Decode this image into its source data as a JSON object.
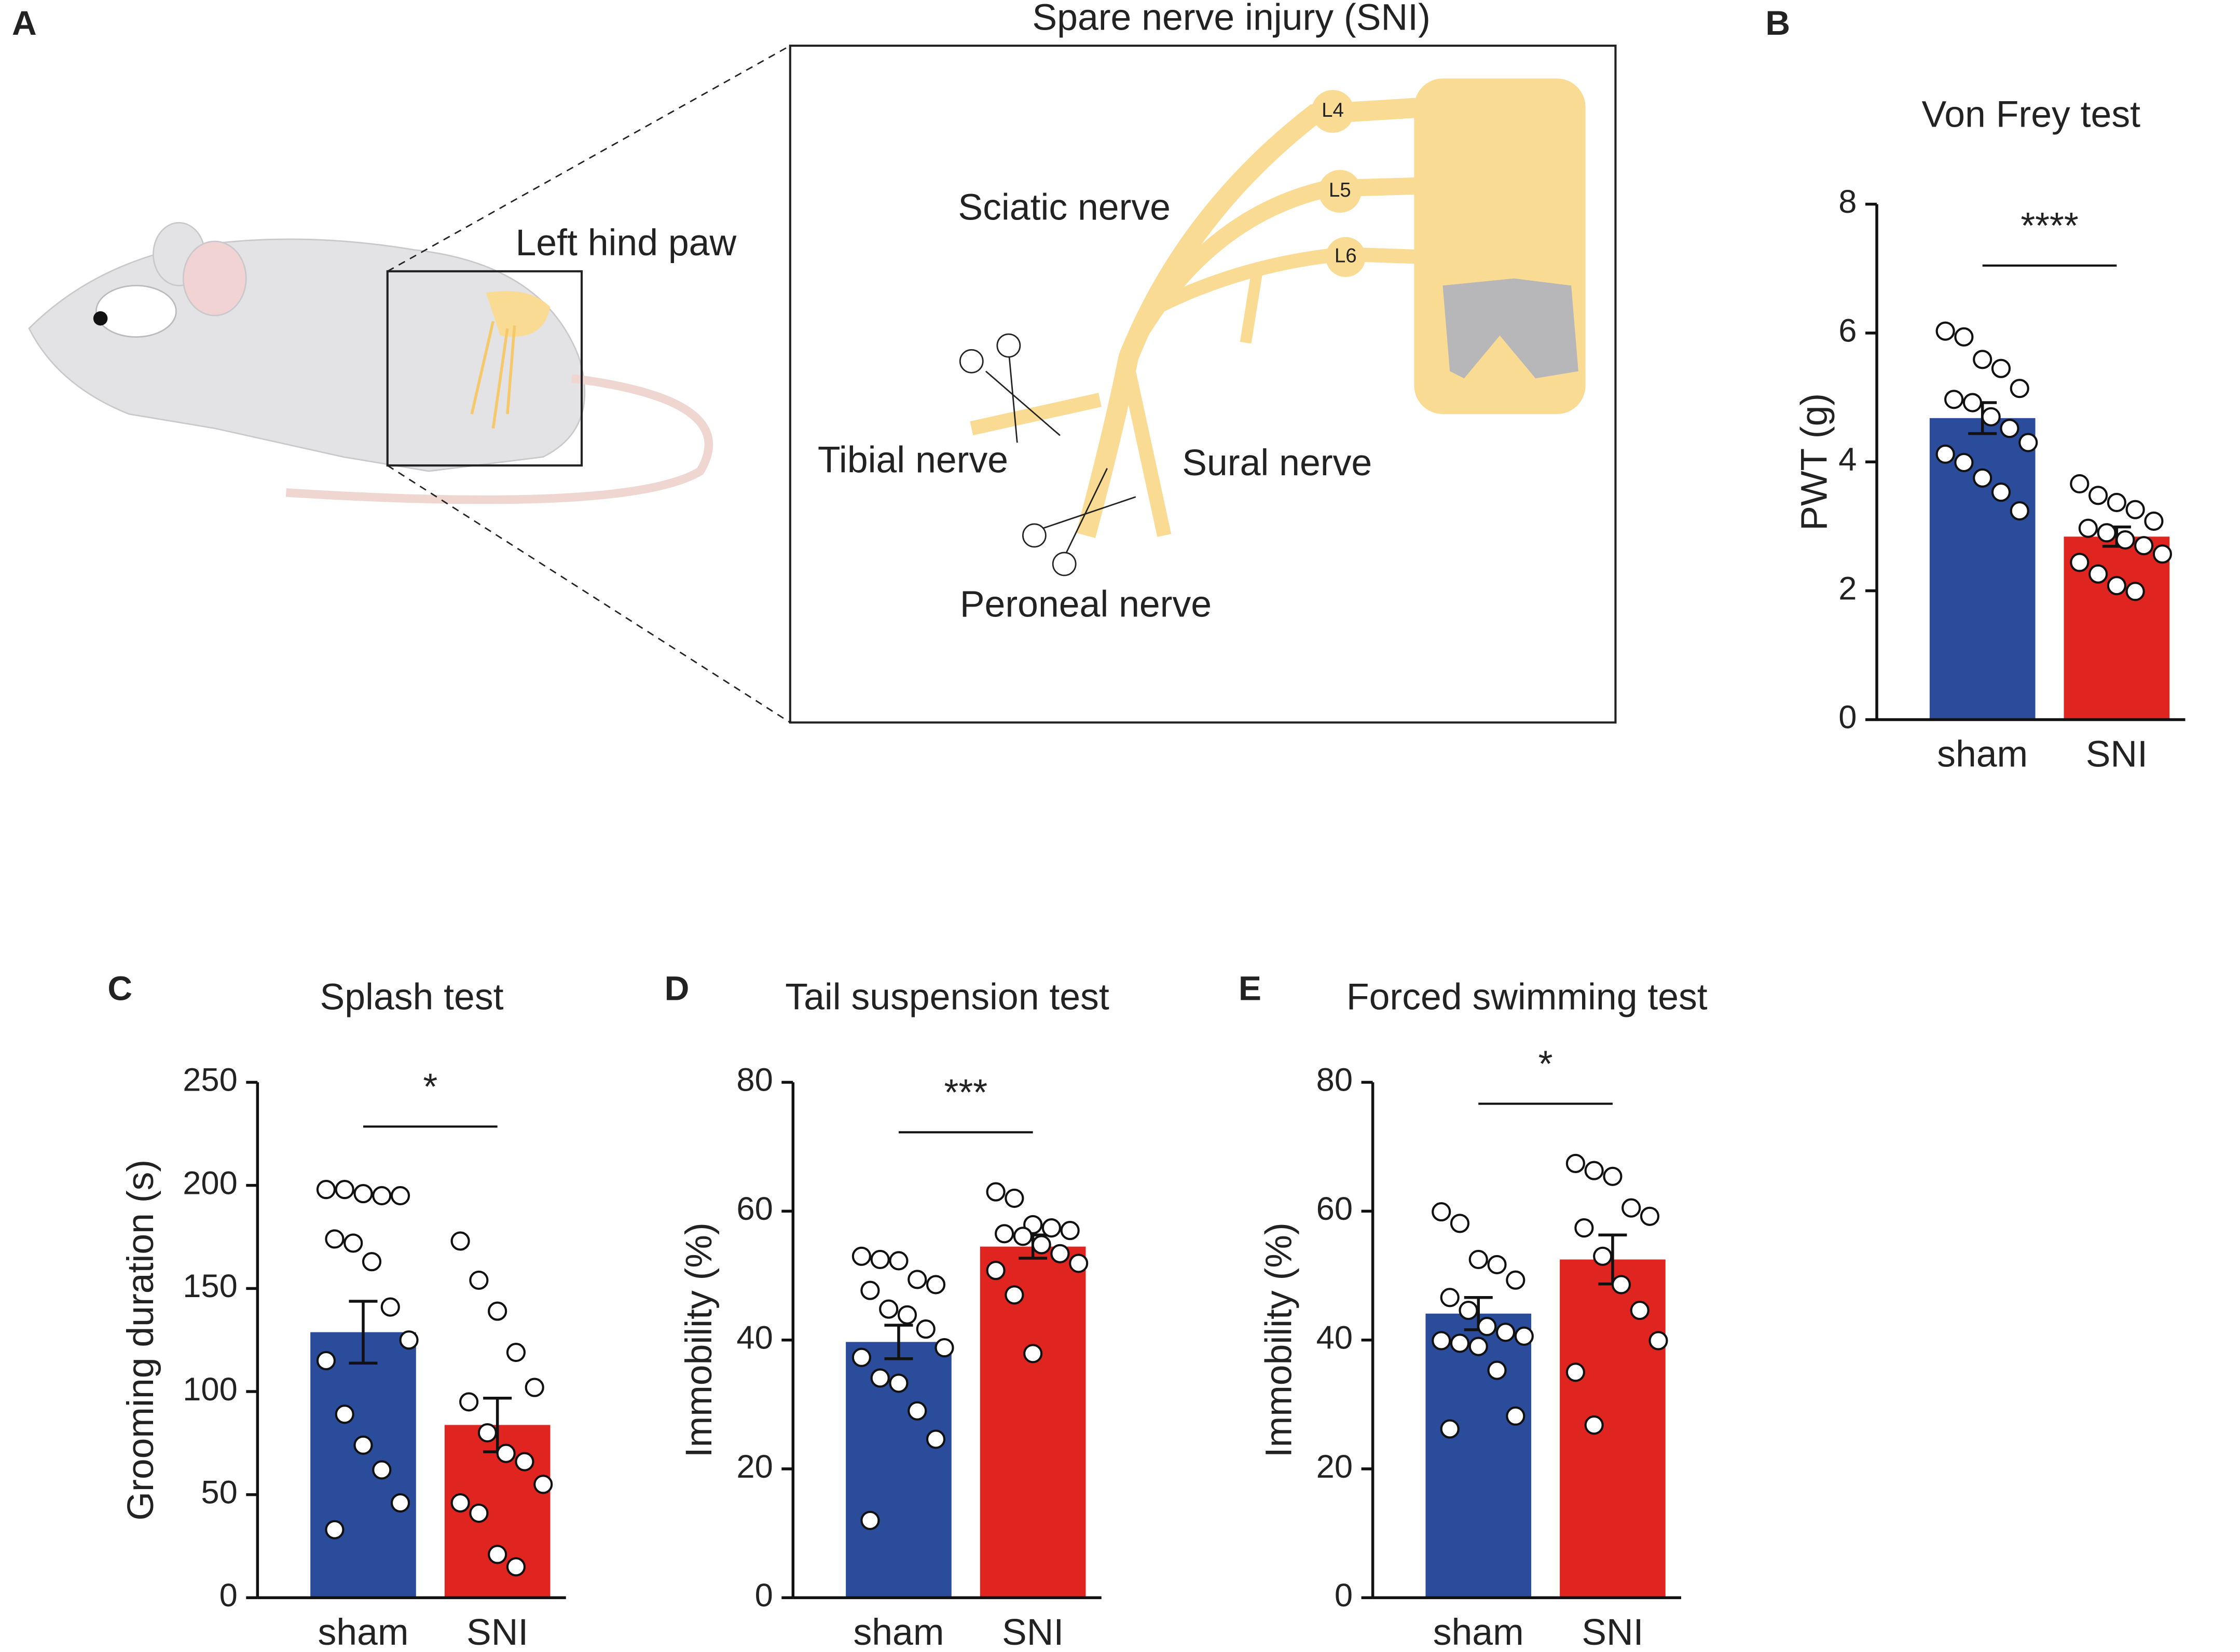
{
  "panel_labels": [
    "A",
    "B",
    "C",
    "D",
    "E"
  ],
  "diagram": {
    "title": "Spare nerve injury (SNI)",
    "inset_label": "Left hind paw",
    "nerves": [
      "Sciatic nerve",
      "Tibial nerve",
      "Sural nerve",
      "Peroneal nerve"
    ],
    "segments": [
      "L4",
      "L5",
      "L6"
    ]
  },
  "chart_data": [
    {
      "type": "bar",
      "title": "Von Frey test",
      "ylabel": "PWT (g)",
      "categories": [
        "sham",
        "SNI"
      ],
      "values": [
        4.68,
        2.84
      ],
      "errors": [
        0.24,
        0.15
      ],
      "colors": [
        "#2b4c9b",
        "#e02420"
      ],
      "points": [
        [
          6.03,
          5.94,
          5.59,
          5.45,
          5.14,
          4.97,
          4.92,
          4.7,
          4.52,
          4.3,
          4.12,
          3.99,
          3.75,
          3.53,
          3.24
        ],
        [
          3.66,
          3.48,
          3.37,
          3.26,
          3.08,
          2.97,
          2.9,
          2.79,
          2.7,
          2.57,
          2.44,
          2.26,
          2.08,
          1.99
        ]
      ],
      "significance": "****",
      "ylim": [
        0,
        8
      ],
      "yticks": [
        0,
        2,
        4,
        6,
        8
      ]
    },
    {
      "type": "bar",
      "title": "Splash test",
      "ylabel": "Grooming duration (s)",
      "categories": [
        "sham",
        "SNI"
      ],
      "values": [
        128.8,
        83.8
      ],
      "errors": [
        15,
        13
      ],
      "colors": [
        "#2b4c9b",
        "#e02420"
      ],
      "points": [
        [
          198,
          198,
          196,
          195,
          195,
          174,
          172,
          163,
          141,
          125,
          115,
          89,
          74,
          62,
          46,
          33
        ],
        [
          173,
          154,
          139,
          119,
          102,
          95,
          80,
          70,
          66,
          55,
          46,
          41,
          21,
          15
        ]
      ],
      "significance": "*",
      "ylim": [
        0,
        250
      ],
      "yticks": [
        0,
        50,
        100,
        150,
        200,
        250
      ]
    },
    {
      "type": "bar",
      "title": "Tail suspension test",
      "ylabel": "Immobility (%)",
      "categories": [
        "sham",
        "SNI"
      ],
      "values": [
        39.7,
        54.5
      ],
      "errors": [
        2.6,
        1.8
      ],
      "colors": [
        "#2b4c9b",
        "#e02420"
      ],
      "points": [
        [
          53,
          52.5,
          52.3,
          49.4,
          48.6,
          47.7,
          44.8,
          43.9,
          41.7,
          38.8,
          37.3,
          34.1,
          33.3,
          29.0,
          24.6,
          12.0
        ],
        [
          63,
          62,
          57.9,
          57.4,
          57,
          56.5,
          56.1,
          54.8,
          53.4,
          51.9,
          50.8,
          47,
          37.9
        ]
      ],
      "significance": "***",
      "ylim": [
        0,
        80
      ],
      "yticks": [
        0,
        20,
        40,
        60,
        80
      ]
    },
    {
      "type": "bar",
      "title": "Forced swimming test",
      "ylabel": "Immobility (%)",
      "categories": [
        "sham",
        "SNI"
      ],
      "values": [
        44.1,
        52.5
      ],
      "errors": [
        2.5,
        3.8
      ],
      "colors": [
        "#2b4c9b",
        "#e02420"
      ],
      "points": [
        [
          59.9,
          58.1,
          52.5,
          51.7,
          49.3,
          46.6,
          44.6,
          42.1,
          41.2,
          40.6,
          39.9,
          39.5,
          39,
          35.3,
          28.2,
          26.2
        ],
        [
          67.4,
          66.3,
          65.4,
          60.5,
          59.2,
          57.4,
          53,
          48.6,
          44.6,
          39.9,
          35,
          26.8
        ]
      ],
      "significance": "*",
      "ylim": [
        0,
        80
      ],
      "yticks": [
        0,
        20,
        40,
        60,
        80
      ]
    }
  ]
}
